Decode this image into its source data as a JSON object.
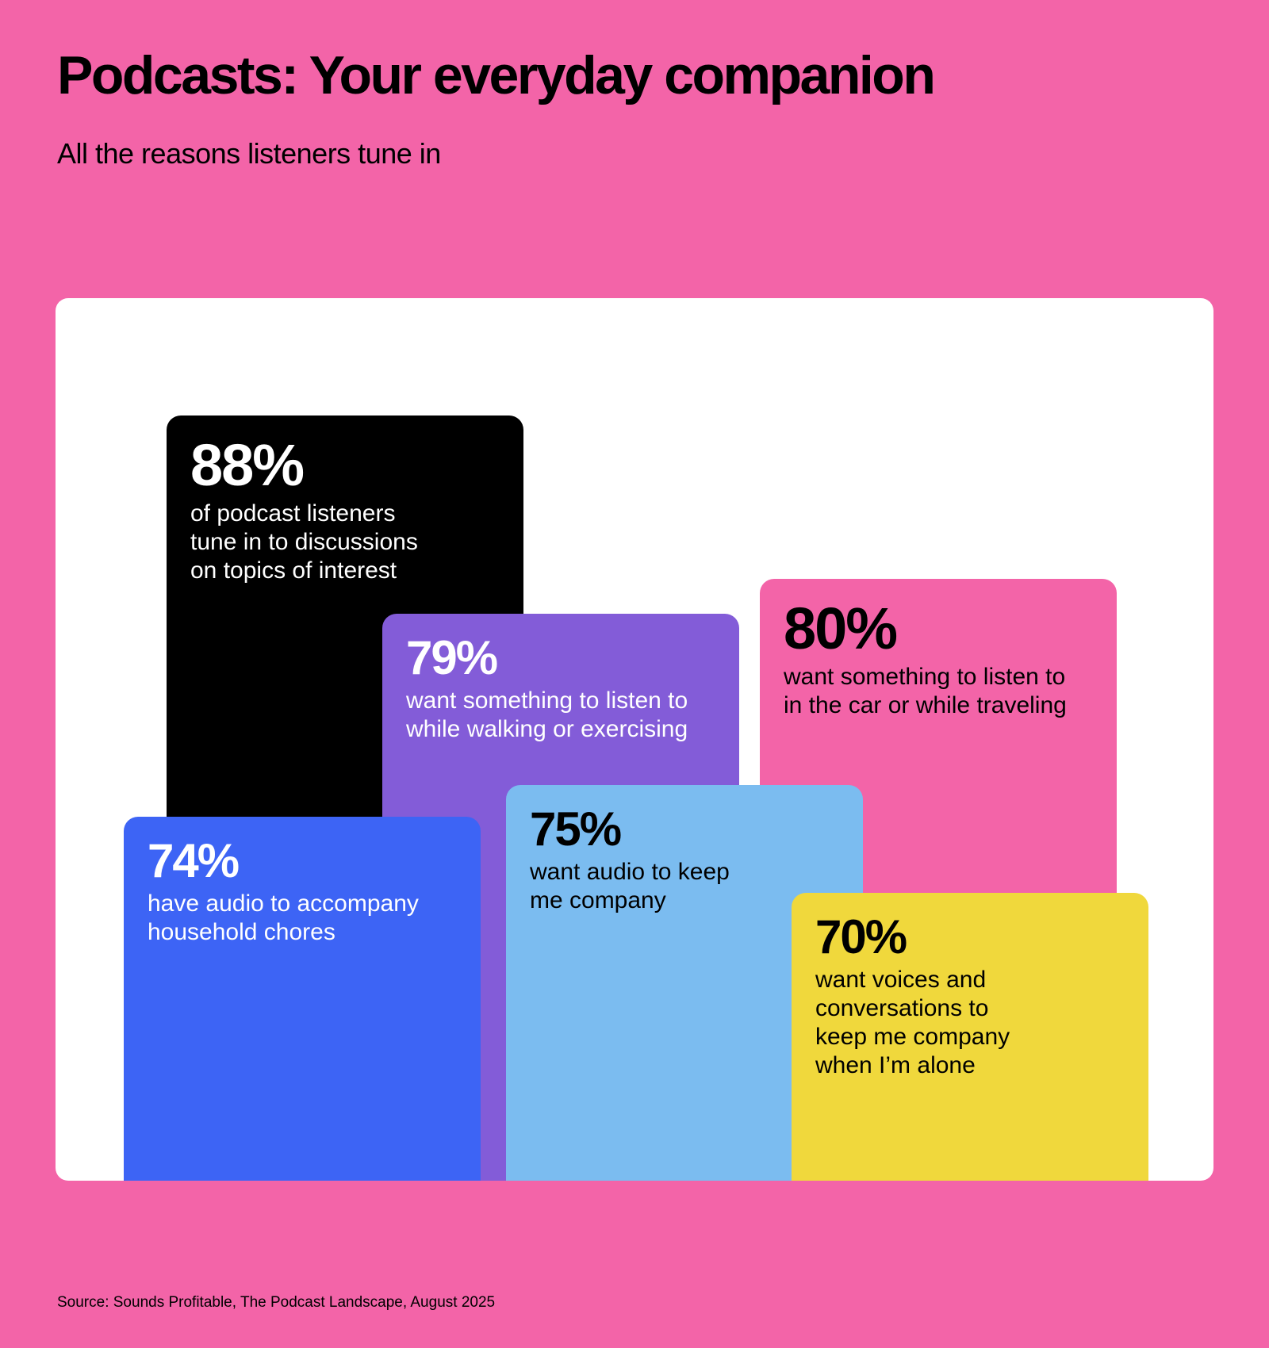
{
  "title": "Podcasts: Your everyday companion",
  "subtitle": "All the reasons listeners tune in",
  "source": "Source: Sounds Profitable, The Podcast Landscape, August 2025",
  "chart_data": {
    "type": "bar",
    "series": [
      {
        "label": "88%",
        "value": 88,
        "description": [
          "of podcast listeners",
          "tune in to discussions",
          "on topics of interest"
        ],
        "color": "#000000",
        "text_color": "#FFFFFF"
      },
      {
        "label": "79%",
        "value": 79,
        "description": [
          "want something to listen to",
          "while walking or exercising"
        ],
        "color": "#835CD8",
        "text_color": "#FFFFFF"
      },
      {
        "label": "80%",
        "value": 80,
        "description": [
          "want something to listen to",
          "in the car or while traveling"
        ],
        "color": "#F364A8",
        "text_color": "#000000"
      },
      {
        "label": "74%",
        "value": 74,
        "description": [
          "have audio to accompany",
          "household chores"
        ],
        "color": "#3D64F5",
        "text_color": "#FFFFFF"
      },
      {
        "label": "75%",
        "value": 75,
        "description": [
          "want audio to keep",
          "me company"
        ],
        "color": "#7BBCF0",
        "text_color": "#000000"
      },
      {
        "label": "70%",
        "value": 70,
        "description": [
          "want voices and",
          "conversations to",
          "keep me company",
          "when I’m alone"
        ],
        "color": "#F0D83C",
        "text_color": "#000000"
      }
    ]
  }
}
